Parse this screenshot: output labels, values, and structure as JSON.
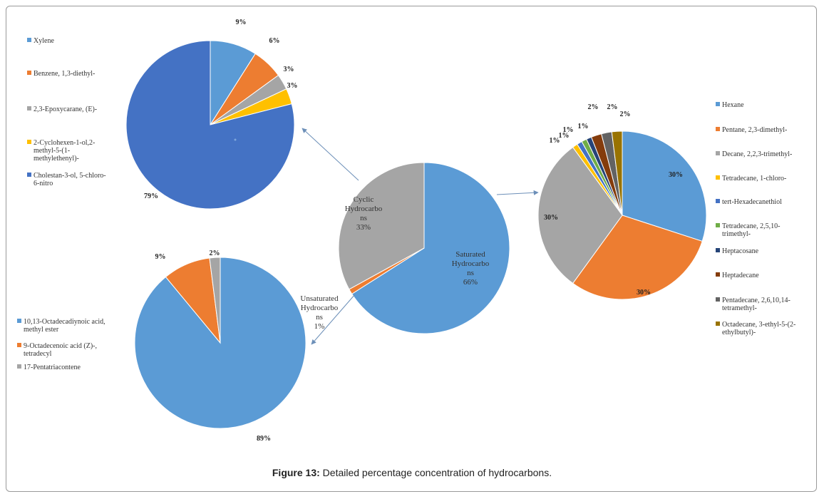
{
  "caption": {
    "prefix": "Figure 13:",
    "text": " Detailed percentage concentration of hydrocarbons."
  },
  "chart_data": [
    {
      "id": "main",
      "type": "pie",
      "slices": [
        {
          "key": "saturated",
          "label": [
            "Saturated",
            "Hydrocarbo",
            "ns",
            "66%"
          ],
          "value": 66,
          "color": "#5b9bd5"
        },
        {
          "key": "unsaturated",
          "label": [
            "Unsaturated",
            "Hydrocarbo",
            "ns",
            "1%"
          ],
          "value": 1,
          "color": "#ed7d31"
        },
        {
          "key": "cyclic",
          "label": [
            "Cyclic",
            "Hydrocarbo",
            "ns",
            "33%"
          ],
          "value": 33,
          "color": "#a5a5a5"
        }
      ]
    },
    {
      "id": "cyclic",
      "type": "pie",
      "slices": [
        {
          "name": [
            "Xylene"
          ],
          "value": 9,
          "label": "9%",
          "color": "#5b9bd5"
        },
        {
          "name": [
            "Benzene, 1,3-diethyl-"
          ],
          "value": 6,
          "label": "6%",
          "color": "#ed7d31"
        },
        {
          "name": [
            "2,3-Epoxycarane, (E)-"
          ],
          "value": 3,
          "label": "3%",
          "color": "#a5a5a5"
        },
        {
          "name": [
            "2-Cyclohexen-1-ol,2-",
            "methyl-5-(1-",
            "methylethenyl)-"
          ],
          "value": 3,
          "label": "3%",
          "color": "#ffc000"
        },
        {
          "name": [
            "Cholestan-3-ol, 5-chloro-",
            "6-nitro"
          ],
          "value": 79,
          "label": "79%",
          "color": "#4472c4"
        }
      ]
    },
    {
      "id": "unsaturated",
      "type": "pie",
      "slices": [
        {
          "name": [
            "10,13-Octadecadiynoic acid,",
            "methyl ester"
          ],
          "value": 89,
          "label": "89%",
          "color": "#5b9bd5"
        },
        {
          "name": [
            "9-Octadecenoic acid (Z)-,",
            "tetradecyl"
          ],
          "value": 9,
          "label": "9%",
          "color": "#ed7d31"
        },
        {
          "name": [
            "17-Pentatriacontene"
          ],
          "value": 2,
          "label": "2%",
          "color": "#a5a5a5"
        }
      ]
    },
    {
      "id": "saturated",
      "type": "pie",
      "slices": [
        {
          "name": [
            "Hexane"
          ],
          "value": 30,
          "label": "30%",
          "color": "#5b9bd5"
        },
        {
          "name": [
            "Pentane, 2,3-dimethyl-"
          ],
          "value": 30,
          "label": "30%",
          "color": "#ed7d31"
        },
        {
          "name": [
            "Decane, 2,2,3-trimethyl-"
          ],
          "value": 30,
          "label": "30%",
          "color": "#a5a5a5"
        },
        {
          "name": [
            "Tetradecane, 1-chloro-"
          ],
          "value": 1,
          "label": "1%",
          "color": "#ffc000"
        },
        {
          "name": [
            "tert-Hexadecanethiol"
          ],
          "value": 1,
          "label": "1%",
          "color": "#4472c4"
        },
        {
          "name": [
            "Tetradecane, 2,5,10-",
            "trimethyl-"
          ],
          "value": 1,
          "label": "1%",
          "color": "#70ad47"
        },
        {
          "name": [
            "Heptacosane"
          ],
          "value": 1,
          "label": "1%",
          "color": "#264478"
        },
        {
          "name": [
            "Heptadecane"
          ],
          "value": 2,
          "label": "2%",
          "color": "#843c0c"
        },
        {
          "name": [
            "Pentadecane, 2,6,10,14-",
            "tetramethyl-"
          ],
          "value": 2,
          "label": "2%",
          "color": "#636363"
        },
        {
          "name": [
            "Octadecane, 3-ethyl-5-(2-",
            "ethylbutyl)-"
          ],
          "value": 2,
          "label": "2%",
          "color": "#997300"
        }
      ]
    }
  ]
}
